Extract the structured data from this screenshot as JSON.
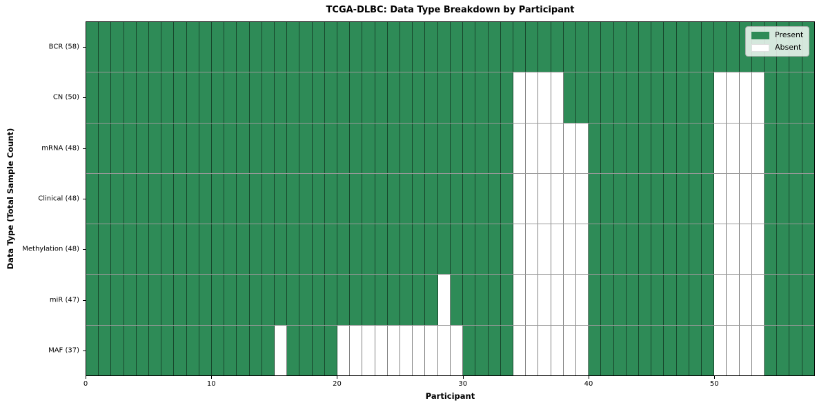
{
  "figure": {
    "title": "TCGA-DLBC: Data Type Breakdown by Participant",
    "xlabel": "Participant",
    "ylabel": "Data Type (Total Sample Count)"
  },
  "legend": {
    "items": [
      {
        "label": "Present",
        "key": "present"
      },
      {
        "label": "Absent",
        "key": "absent"
      }
    ],
    "position": "upper right"
  },
  "colors": {
    "present": "#2e8b57",
    "absent": "#ffffff",
    "cell_edge": "rgba(0,0,0,0.5)",
    "row_edge": "rgba(70,70,70,0.55)",
    "plot_border": "#000000",
    "legend_bg": "rgba(255,255,255,0.8)",
    "legend_border": "#b4b4b4"
  },
  "chart_data": {
    "type": "heatmap",
    "title": "TCGA-DLBC: Data Type Breakdown by Participant",
    "xlabel": "Participant",
    "ylabel": "Data Type (Total Sample Count)",
    "n_participants": 58,
    "x_range": [
      0,
      58
    ],
    "x_ticks": [
      0,
      10,
      20,
      30,
      40,
      50
    ],
    "grid": true,
    "legend_entries": [
      "Present",
      "Absent"
    ],
    "encoding": "cells are 'present' unless participant index listed in absent_participants",
    "rows": [
      {
        "label": "BCR (58)",
        "data_type": "BCR",
        "present_count": 58,
        "absent_participants": []
      },
      {
        "label": "CN (50)",
        "data_type": "CN",
        "present_count": 50,
        "absent_participants": [
          34,
          35,
          36,
          37,
          50,
          51,
          52,
          53
        ]
      },
      {
        "label": "mRNA (48)",
        "data_type": "mRNA",
        "present_count": 48,
        "absent_participants": [
          34,
          35,
          36,
          37,
          38,
          39,
          50,
          51,
          52,
          53
        ]
      },
      {
        "label": "Clinical (48)",
        "data_type": "Clinical",
        "present_count": 48,
        "absent_participants": [
          34,
          35,
          36,
          37,
          38,
          39,
          50,
          51,
          52,
          53
        ]
      },
      {
        "label": "Methylation (48)",
        "data_type": "Methylation",
        "present_count": 48,
        "absent_participants": [
          34,
          35,
          36,
          37,
          38,
          39,
          50,
          51,
          52,
          53
        ]
      },
      {
        "label": "miR (47)",
        "data_type": "miR",
        "present_count": 47,
        "absent_participants": [
          28,
          34,
          35,
          36,
          37,
          38,
          39,
          50,
          51,
          52,
          53
        ]
      },
      {
        "label": "MAF (37)",
        "data_type": "MAF",
        "present_count": 37,
        "absent_participants": [
          15,
          20,
          21,
          22,
          23,
          24,
          25,
          26,
          27,
          28,
          29,
          34,
          35,
          36,
          37,
          38,
          39,
          50,
          51,
          52,
          53
        ]
      }
    ]
  }
}
